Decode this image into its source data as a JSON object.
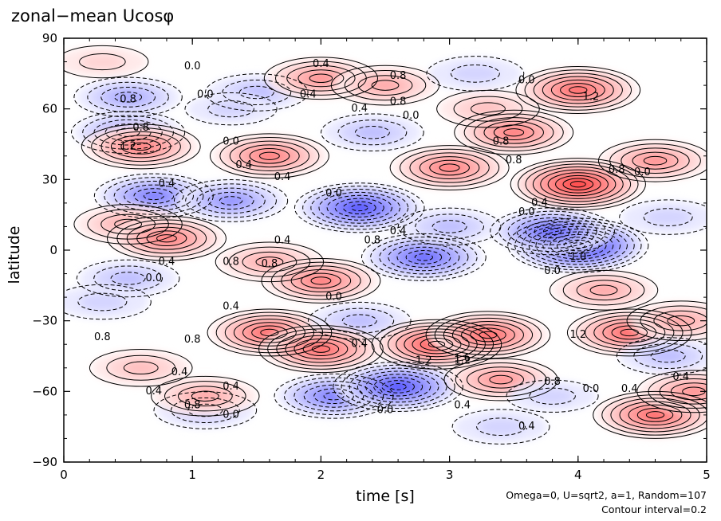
{
  "chart_data": {
    "type": "heatmap",
    "title": "zonal−mean Ucosφ",
    "xlabel": "time [s]",
    "ylabel": "latitude",
    "xlim": [
      0,
      5
    ],
    "ylim": [
      -90,
      90
    ],
    "x_ticks": [
      "0",
      "1",
      "2",
      "3",
      "4",
      "5"
    ],
    "y_ticks": [
      "90",
      "60",
      "30",
      "0",
      "−30",
      "−60",
      "−90"
    ],
    "colors": {
      "positive": "#ff0000",
      "negative": "#0000ff",
      "zero": "#ffffff"
    },
    "features": [
      {
        "x": 0.5,
        "y": 65,
        "value": -0.8
      },
      {
        "x": 0.5,
        "y": 50,
        "value": -1.0
      },
      {
        "x": 0.6,
        "y": 44,
        "value": 1.2
      },
      {
        "x": 0.7,
        "y": 23,
        "value": -1.2
      },
      {
        "x": 0.5,
        "y": 11,
        "value": 0.8
      },
      {
        "x": 0.8,
        "y": 5,
        "value": 1.2
      },
      {
        "x": 0.5,
        "y": -12,
        "value": -0.6
      },
      {
        "x": 0.3,
        "y": -22,
        "value": -0.4
      },
      {
        "x": 0.6,
        "y": -50,
        "value": 0.6
      },
      {
        "x": 1.1,
        "y": -68,
        "value": -0.6
      },
      {
        "x": 1.1,
        "y": -62,
        "value": 0.8
      },
      {
        "x": 1.5,
        "y": 67,
        "value": -0.6
      },
      {
        "x": 1.6,
        "y": 40,
        "value": 1.2
      },
      {
        "x": 1.3,
        "y": 21,
        "value": -1.0
      },
      {
        "x": 2.3,
        "y": 18,
        "value": -1.6
      },
      {
        "x": 1.6,
        "y": -5,
        "value": 0.8
      },
      {
        "x": 2.0,
        "y": -13,
        "value": 1.2
      },
      {
        "x": 1.6,
        "y": -35,
        "value": 1.4
      },
      {
        "x": 2.3,
        "y": -30,
        "value": -0.6
      },
      {
        "x": 2.0,
        "y": -42,
        "value": 1.4
      },
      {
        "x": 2.1,
        "y": -62,
        "value": -1.2
      },
      {
        "x": 2.0,
        "y": 73,
        "value": 1.0
      },
      {
        "x": 2.5,
        "y": 70,
        "value": 0.8
      },
      {
        "x": 2.4,
        "y": 50,
        "value": -0.6
      },
      {
        "x": 2.8,
        "y": -3,
        "value": -1.4
      },
      {
        "x": 2.9,
        "y": -40,
        "value": 1.6
      },
      {
        "x": 2.6,
        "y": -58,
        "value": -1.6
      },
      {
        "x": 3.0,
        "y": 35,
        "value": 1.2
      },
      {
        "x": 3.3,
        "y": 60,
        "value": 0.6
      },
      {
        "x": 3.5,
        "y": 50,
        "value": 1.2
      },
      {
        "x": 3.0,
        "y": 10,
        "value": -0.6
      },
      {
        "x": 3.3,
        "y": -36,
        "value": 1.4
      },
      {
        "x": 3.4,
        "y": -55,
        "value": 1.0
      },
      {
        "x": 3.4,
        "y": -75,
        "value": -0.4
      },
      {
        "x": 3.2,
        "y": 75,
        "value": -0.4
      },
      {
        "x": 4.0,
        "y": 68,
        "value": 1.4
      },
      {
        "x": 4.0,
        "y": 28,
        "value": 1.8
      },
      {
        "x": 4.6,
        "y": 38,
        "value": 1.0
      },
      {
        "x": 4.0,
        "y": 2,
        "value": -2.0
      },
      {
        "x": 3.8,
        "y": 8,
        "value": -1.4
      },
      {
        "x": 4.2,
        "y": -17,
        "value": 0.8
      },
      {
        "x": 4.4,
        "y": -35,
        "value": 1.4
      },
      {
        "x": 4.8,
        "y": -30,
        "value": 0.8
      },
      {
        "x": 4.7,
        "y": -45,
        "value": -0.6
      },
      {
        "x": 4.6,
        "y": -70,
        "value": 1.4
      },
      {
        "x": 4.9,
        "y": -60,
        "value": 1.0
      },
      {
        "x": 4.7,
        "y": 14,
        "value": -0.4
      },
      {
        "x": 3.8,
        "y": -62,
        "value": -0.2
      },
      {
        "x": 0.3,
        "y": 80,
        "value": 0.2
      },
      {
        "x": 1.3,
        "y": 60,
        "value": -0.2
      }
    ],
    "contour_labels": [
      {
        "x": 1.0,
        "y": 78,
        "text": "0.0"
      },
      {
        "x": 1.1,
        "y": 66,
        "text": "0.0"
      },
      {
        "x": 2.0,
        "y": 79,
        "text": "0.4"
      },
      {
        "x": 1.9,
        "y": 66,
        "text": "0.4"
      },
      {
        "x": 2.6,
        "y": 74,
        "text": "0.8"
      },
      {
        "x": 2.6,
        "y": 63,
        "text": "0.8"
      },
      {
        "x": 2.7,
        "y": 57,
        "text": "0.0"
      },
      {
        "x": 3.6,
        "y": 72,
        "text": "0.0"
      },
      {
        "x": 0.5,
        "y": 64,
        "text": "0.8"
      },
      {
        "x": 0.6,
        "y": 52,
        "text": "0.8"
      },
      {
        "x": 0.5,
        "y": 44,
        "text": "1.2"
      },
      {
        "x": 1.3,
        "y": 46,
        "text": "0.0"
      },
      {
        "x": 1.4,
        "y": 36,
        "text": "0.4"
      },
      {
        "x": 1.7,
        "y": 31,
        "text": "0.4"
      },
      {
        "x": 0.8,
        "y": 28,
        "text": "0.4"
      },
      {
        "x": 2.1,
        "y": 24,
        "text": "0.0"
      },
      {
        "x": 1.7,
        "y": 4,
        "text": "0.4"
      },
      {
        "x": 2.4,
        "y": 4,
        "text": "0.8"
      },
      {
        "x": 0.8,
        "y": -5,
        "text": "0.4"
      },
      {
        "x": 1.3,
        "y": -5,
        "text": "0.8"
      },
      {
        "x": 1.6,
        "y": -6,
        "text": "0.8"
      },
      {
        "x": 0.7,
        "y": -12,
        "text": "0.0"
      },
      {
        "x": 2.1,
        "y": -20,
        "text": "0.0"
      },
      {
        "x": 1.3,
        "y": -24,
        "text": "0.4"
      },
      {
        "x": 0.3,
        "y": -37,
        "text": "0.8"
      },
      {
        "x": 1.0,
        "y": -38,
        "text": "0.8"
      },
      {
        "x": 0.9,
        "y": -52,
        "text": "0.4"
      },
      {
        "x": 1.3,
        "y": -58,
        "text": "0.4"
      },
      {
        "x": 0.7,
        "y": -60,
        "text": "0.4"
      },
      {
        "x": 1.0,
        "y": -66,
        "text": "0.8"
      },
      {
        "x": 1.3,
        "y": -70,
        "text": "0.0"
      },
      {
        "x": 2.5,
        "y": -68,
        "text": "0.0"
      },
      {
        "x": 3.1,
        "y": -66,
        "text": "0.4"
      },
      {
        "x": 3.6,
        "y": -75,
        "text": "0.4"
      },
      {
        "x": 3.1,
        "y": -46,
        "text": "1.6"
      },
      {
        "x": 2.8,
        "y": -47,
        "text": "1.2"
      },
      {
        "x": 3.8,
        "y": -56,
        "text": "0.8"
      },
      {
        "x": 4.1,
        "y": -59,
        "text": "0.0"
      },
      {
        "x": 4.4,
        "y": -59,
        "text": "0.4"
      },
      {
        "x": 4.8,
        "y": -54,
        "text": "0.4"
      },
      {
        "x": 4.0,
        "y": -36,
        "text": "1.2"
      },
      {
        "x": 3.8,
        "y": -9,
        "text": "0.0"
      },
      {
        "x": 4.0,
        "y": -3,
        "text": "1.0"
      },
      {
        "x": 3.6,
        "y": 16,
        "text": "0.0"
      },
      {
        "x": 3.7,
        "y": 20,
        "text": "0.4"
      },
      {
        "x": 3.5,
        "y": 38,
        "text": "0.8"
      },
      {
        "x": 4.3,
        "y": 34,
        "text": "0.8"
      },
      {
        "x": 4.5,
        "y": 33,
        "text": "0.0"
      },
      {
        "x": 3.4,
        "y": 46,
        "text": "0.8"
      },
      {
        "x": 4.1,
        "y": 65,
        "text": "1.2"
      },
      {
        "x": 2.6,
        "y": 8,
        "text": "0.4"
      },
      {
        "x": 2.3,
        "y": -40,
        "text": "0.4"
      },
      {
        "x": 3.1,
        "y": -47,
        "text": "1.2"
      },
      {
        "x": 2.3,
        "y": 60,
        "text": "0.4"
      }
    ]
  },
  "notes": {
    "run": "Omega=0, U=sqrt2, a=1, Random=107",
    "interval": "Contour interval=0.2"
  }
}
